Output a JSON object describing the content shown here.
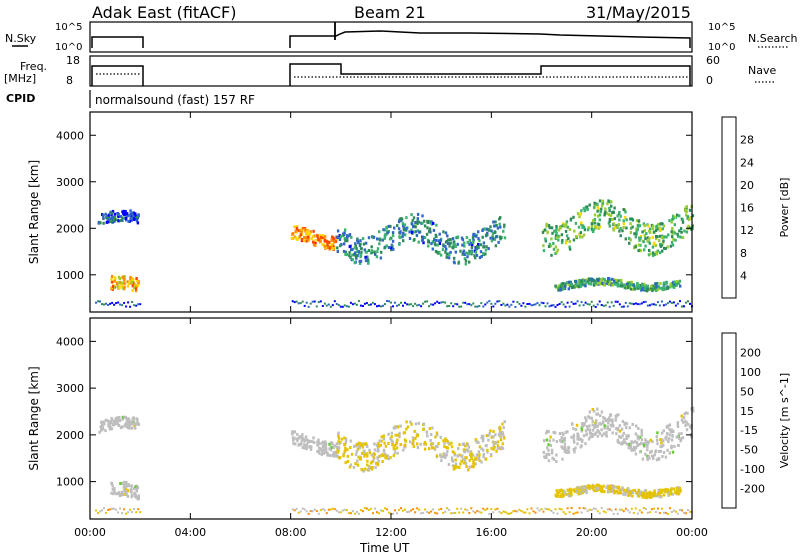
{
  "header": {
    "station": "Adak East (fitACF)",
    "beam": "Beam 21",
    "date": "31/May/2015"
  },
  "left_labels": {
    "nsky": "N.Sky",
    "freq": "Freq.",
    "freq_unit": "[MHz]",
    "cpid": "CPID"
  },
  "right_labels": {
    "nsearch": "N.Search",
    "nave": "Nave"
  },
  "cpid_text": "normalsound (fast) 157 RF",
  "noise_ticks": {
    "top": "10^5",
    "bottom": "10^0"
  },
  "freq_ticks": [
    "18",
    "8"
  ],
  "nave_ticks": [
    "60",
    "0"
  ],
  "colors": {
    "power": [
      "#0000ff",
      "#2f66c8",
      "#2e8b57",
      "#3cb371",
      "#9acd32",
      "#ffd700",
      "#ff8c00",
      "#ff4500",
      "#ff0000"
    ],
    "velocity": [
      "#1030a0",
      "#2a4fd0",
      "#2e8b57",
      "#66cc33",
      "#bebebe",
      "#e6c300",
      "#ff8c00",
      "#ff3a00",
      "#ff0000"
    ]
  },
  "chart_data": [
    {
      "type": "heatmap",
      "ylabel": "Slant Range [km]",
      "xlabel": "Time UT",
      "x_ticks": [
        "00:00",
        "04:00",
        "08:00",
        "12:00",
        "16:00",
        "20:00",
        "00:00"
      ],
      "y_ticks": [
        1000,
        2000,
        3000,
        4000
      ],
      "ylim": [
        200,
        4500
      ],
      "xlim_hours": [
        0,
        24
      ],
      "colorbar": {
        "label": "Power [dB]",
        "ticks": [
          "28",
          "24",
          "20",
          "16",
          "12",
          "8",
          "4"
        ]
      },
      "echo_bands": [
        {
          "t_start": 0.3,
          "t_end": 1.9,
          "range_km": [
            2000,
            2400
          ],
          "power_db": 4
        },
        {
          "t_start": 0.8,
          "t_end": 1.9,
          "range_km": [
            500,
            1000
          ],
          "power_db": 20
        },
        {
          "t_start": 8.0,
          "t_end": 9.8,
          "range_km": [
            1600,
            2100
          ],
          "power_db": 22
        },
        {
          "t_start": 9.8,
          "t_end": 16.5,
          "range_km": [
            1300,
            2300
          ],
          "power_db": 8
        },
        {
          "t_start": 18.0,
          "t_end": 24.0,
          "range_km": [
            1500,
            2600
          ],
          "power_db": 12
        },
        {
          "t_start": 18.5,
          "t_end": 23.5,
          "range_km": [
            700,
            950
          ],
          "power_db": 10
        }
      ]
    },
    {
      "type": "heatmap",
      "ylabel": "Slant Range [km]",
      "xlabel": "Time UT",
      "x_ticks": [
        "00:00",
        "04:00",
        "08:00",
        "12:00",
        "16:00",
        "20:00",
        "00:00"
      ],
      "y_ticks": [
        1000,
        2000,
        3000,
        4000
      ],
      "ylim": [
        200,
        4500
      ],
      "xlim_hours": [
        0,
        24
      ],
      "colorbar": {
        "label": "Velocity [m s^-1]",
        "ticks": [
          "200",
          "100",
          "50",
          "15",
          "-15",
          "-50",
          "-100",
          "-200"
        ]
      },
      "echo_bands": [
        {
          "t_start": 0.3,
          "t_end": 1.9,
          "range_km": [
            2000,
            2400
          ],
          "velocity": 0
        },
        {
          "t_start": 0.8,
          "t_end": 1.9,
          "range_km": [
            500,
            1000
          ],
          "velocity": 0
        },
        {
          "t_start": 8.0,
          "t_end": 9.8,
          "range_km": [
            1600,
            2100
          ],
          "velocity": 0
        },
        {
          "t_start": 9.8,
          "t_end": 16.5,
          "range_km": [
            1300,
            2300
          ],
          "velocity": 30
        },
        {
          "t_start": 18.0,
          "t_end": 24.0,
          "range_km": [
            1500,
            2600
          ],
          "velocity": 0
        },
        {
          "t_start": 18.5,
          "t_end": 23.5,
          "range_km": [
            700,
            950
          ],
          "velocity": 40
        }
      ]
    }
  ],
  "params": {
    "freq_mhz": [
      {
        "t_start": 0.0,
        "t_end": 2.0,
        "value": 10.6
      },
      {
        "t_start": 8.0,
        "t_end": 10.0,
        "value": 10.6
      },
      {
        "t_start": 10.0,
        "t_end": 18.0,
        "value": 9.6
      },
      {
        "t_start": 18.0,
        "t_end": 24.0,
        "value": 10.6
      }
    ]
  }
}
